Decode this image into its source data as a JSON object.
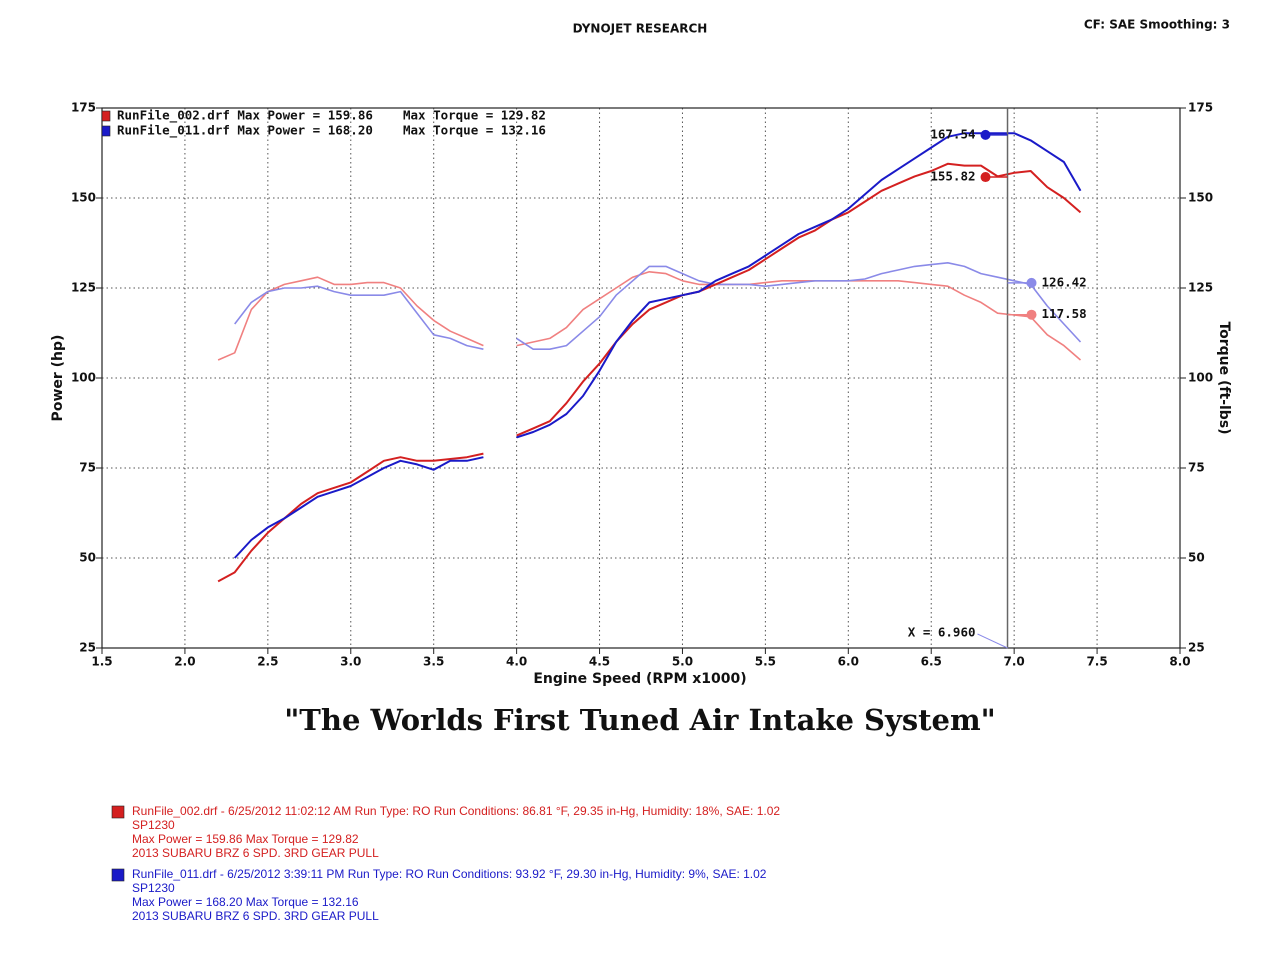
{
  "chart_data": {
    "type": "line",
    "title": "DYNOJET RESEARCH",
    "subtitle": "CF: SAE  Smoothing: 3",
    "xlabel": "Engine Speed (RPM x1000)",
    "ylabel": "Power (hp)",
    "y2label": "Torque (ft-lbs)",
    "xlim": [
      1.5,
      8.0
    ],
    "xticks": [
      1.5,
      {
        "value": 2,
        "label": "2.0"
      },
      2.5,
      {
        "value": 3,
        "label": "3.0"
      },
      3.5,
      {
        "value": 4,
        "label": "4.0"
      },
      4.5,
      {
        "value": 5,
        "label": "5.0"
      },
      5.5,
      {
        "value": 6,
        "label": "6.0"
      },
      6.5,
      {
        "value": 7,
        "label": "7.0"
      },
      7.5,
      {
        "value": 8,
        "label": "8.0"
      }
    ],
    "ylim": [
      25,
      175
    ],
    "yticks": [
      25,
      50,
      75,
      100,
      125,
      150,
      175
    ],
    "y2lim": [
      25,
      175
    ],
    "y2ticks": [
      25,
      50,
      75,
      100,
      125,
      150,
      175
    ],
    "grid": true,
    "legend": [
      {
        "color": "#d42020",
        "text": "RunFile_002.drf Max Power = 159.86    Max Torque = 129.82"
      },
      {
        "color": "#1a1ac8",
        "text": "RunFile_011.drf Max Power = 168.20    Max Torque = 132.16"
      }
    ],
    "x": [
      2.2,
      2.3,
      2.4,
      2.5,
      2.6,
      2.7,
      2.8,
      2.9,
      3.0,
      3.1,
      3.2,
      3.3,
      3.4,
      3.5,
      3.6,
      3.7,
      3.8,
      3.9,
      4.0,
      4.1,
      4.2,
      4.3,
      4.4,
      4.5,
      4.6,
      4.7,
      4.8,
      4.9,
      5.0,
      5.1,
      5.2,
      5.3,
      5.4,
      5.5,
      5.6,
      5.7,
      5.8,
      5.9,
      6.0,
      6.1,
      6.2,
      6.3,
      6.4,
      6.5,
      6.6,
      6.7,
      6.8,
      6.9,
      7.0,
      7.1,
      7.2,
      7.3,
      7.4
    ],
    "series": [
      {
        "color": "#f08080",
        "axis": "y2",
        "values": [
          105,
          107,
          119,
          124,
          126,
          127,
          128,
          126,
          126,
          126.5,
          126.5,
          125,
          120,
          116,
          113,
          111,
          109,
          null,
          109,
          110,
          111,
          114,
          119,
          122,
          125,
          128,
          129.5,
          129,
          127,
          126,
          126,
          126,
          126,
          126.5,
          127,
          127,
          127,
          127,
          127,
          127,
          127,
          127,
          126.5,
          126,
          125.5,
          123,
          121,
          118,
          117.5,
          117,
          112,
          109,
          105
        ]
      },
      {
        "color": "#8a8ae8",
        "axis": "y2",
        "values": [
          null,
          115,
          121,
          124,
          125,
          125,
          125.5,
          124,
          123,
          123,
          123,
          124,
          118,
          112,
          111,
          109,
          108,
          null,
          111,
          108,
          108,
          109,
          113,
          117,
          123,
          127,
          131,
          131,
          129,
          127,
          126,
          126,
          126,
          125.5,
          126,
          126.5,
          127,
          127,
          127,
          127.5,
          129,
          130,
          131,
          131.5,
          132,
          131,
          129,
          128,
          127,
          126,
          120,
          115,
          110
        ]
      },
      {
        "color": "#d42020",
        "values": [
          43.5,
          46,
          52,
          57,
          61,
          65,
          68,
          69.5,
          71,
          74,
          77,
          78,
          77,
          77,
          77.5,
          78,
          79,
          null,
          84,
          86,
          88,
          93,
          99,
          104,
          110,
          115,
          119,
          121,
          123,
          124,
          126,
          128,
          130,
          133,
          136,
          139,
          141,
          144,
          146,
          149,
          152,
          154,
          156,
          157.5,
          159.5,
          159,
          159,
          156,
          157,
          157.5,
          153,
          150,
          146
        ]
      },
      {
        "color": "#1a1ac8",
        "values": [
          null,
          50,
          55,
          58.5,
          61,
          64,
          67,
          68.5,
          70,
          72.5,
          75,
          77,
          76,
          74.5,
          77,
          77,
          78,
          null,
          83.5,
          85,
          87,
          90,
          95,
          102,
          110,
          116,
          121,
          122,
          123,
          124,
          127,
          129,
          131,
          134,
          137,
          140,
          142,
          144,
          147,
          151,
          155,
          158,
          161,
          164,
          167,
          168,
          168,
          168,
          168,
          166,
          163,
          160,
          152
        ]
      }
    ],
    "cursor": {
      "x": 6.96,
      "label": "X = 6.960",
      "readouts": [
        {
          "series": 3,
          "value": 167.54
        },
        {
          "series": 2,
          "value": 155.82
        },
        {
          "series": 1,
          "value": 126.42
        },
        {
          "series": 0,
          "value": 117.58
        }
      ]
    },
    "annotation": "\"The Worlds First Tuned Air Intake System\"",
    "notes": [
      {
        "color": "#d42020",
        "lines": [
          "RunFile_002.drf - 6/25/2012 11:02:12 AM  Run Type: RO  Run Conditions: 86.81 °F, 29.35 in-Hg,  Humidity:  18%, SAE: 1.02",
          "SP1230",
          "Max Power = 159.86  Max Torque = 129.82",
          "2013 SUBARU BRZ 6 SPD.  3RD GEAR PULL"
        ]
      },
      {
        "color": "#1a1ac8",
        "lines": [
          "RunFile_011.drf - 6/25/2012 3:39:11 PM  Run Type: RO  Run Conditions: 93.92 °F, 29.30 in-Hg,  Humidity:  9%, SAE: 1.02",
          "SP1230",
          "Max Power = 168.20  Max Torque = 132.16",
          "2013 SUBARU BRZ 6 SPD. 3RD GEAR PULL"
        ]
      }
    ]
  }
}
